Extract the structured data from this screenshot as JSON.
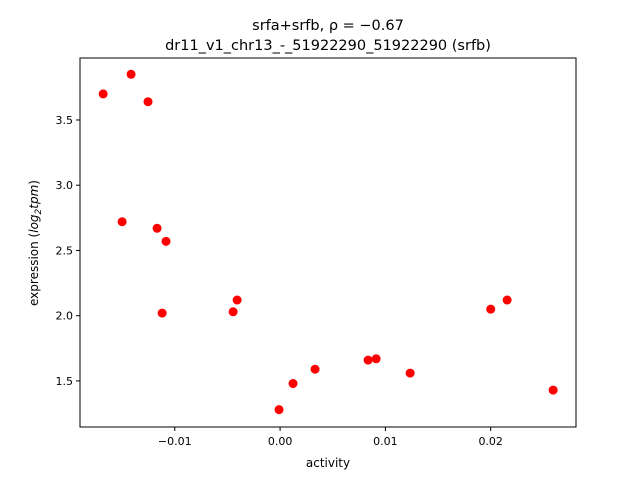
{
  "chart_data": {
    "type": "scatter",
    "title_line1": "srfa+srfb, ρ = −0.67",
    "title_line2": "dr11_v1_chr13_-_51922290_51922290 (srfb)",
    "xlabel": "activity",
    "ylabel_parts": {
      "prefix": "expression (",
      "log": "log",
      "sub": "2",
      "tpm": "tpm",
      "suffix": ")"
    },
    "xlim": [
      -0.019,
      0.0281
    ],
    "ylim": [
      1.147,
      3.975
    ],
    "xticks": [
      {
        "v": -0.01,
        "label": "−0.01"
      },
      {
        "v": 0.0,
        "label": "0.00"
      },
      {
        "v": 0.01,
        "label": "0.01"
      },
      {
        "v": 0.02,
        "label": "0.02"
      }
    ],
    "yticks": [
      {
        "v": 1.5,
        "label": "1.5"
      },
      {
        "v": 2.0,
        "label": "2.0"
      },
      {
        "v": 2.5,
        "label": "2.5"
      },
      {
        "v": 3.0,
        "label": "3.0"
      },
      {
        "v": 3.5,
        "label": "3.5"
      }
    ],
    "grid": false,
    "color": "#ff0000",
    "points": [
      {
        "x": -0.0168,
        "y": 3.7
      },
      {
        "x": -0.01415,
        "y": 3.85
      },
      {
        "x": -0.01254,
        "y": 3.64
      },
      {
        "x": -0.015,
        "y": 2.72
      },
      {
        "x": -0.01168,
        "y": 2.67
      },
      {
        "x": -0.01083,
        "y": 2.57
      },
      {
        "x": -0.0112,
        "y": 2.02
      },
      {
        "x": -0.00446,
        "y": 2.03
      },
      {
        "x": -0.00408,
        "y": 2.12
      },
      {
        "x": -0.0001,
        "y": 1.28
      },
      {
        "x": 0.00123,
        "y": 1.48
      },
      {
        "x": 0.00332,
        "y": 1.59
      },
      {
        "x": 0.00836,
        "y": 1.66
      },
      {
        "x": 0.00912,
        "y": 1.67
      },
      {
        "x": 0.01235,
        "y": 1.56
      },
      {
        "x": 0.02,
        "y": 2.05
      },
      {
        "x": 0.02156,
        "y": 2.12
      },
      {
        "x": 0.02593,
        "y": 1.43
      }
    ]
  }
}
